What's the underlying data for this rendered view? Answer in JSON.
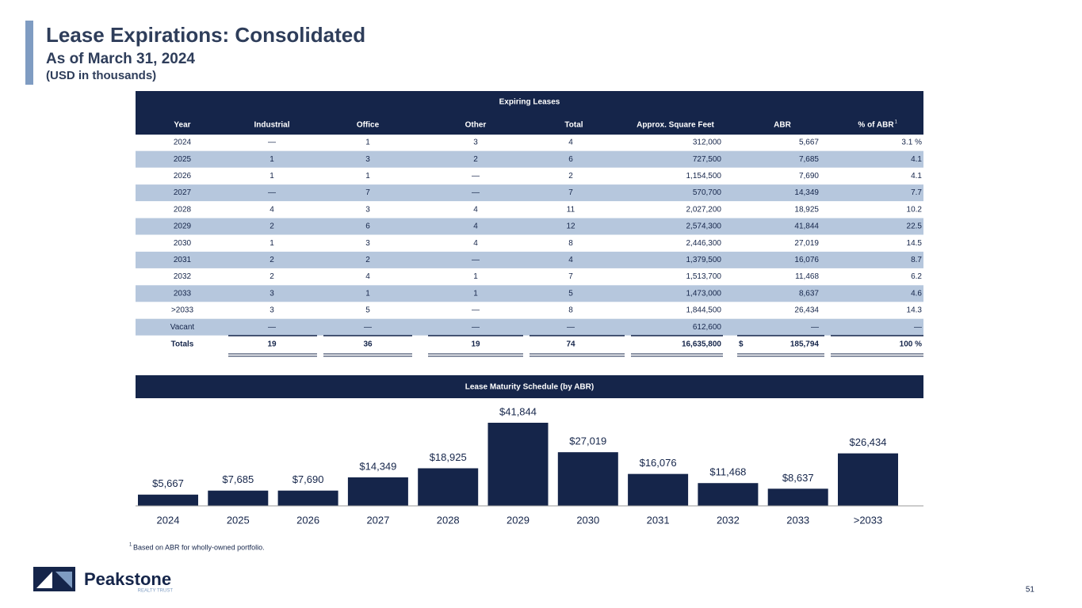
{
  "header": {
    "title": "Lease Expirations: Consolidated",
    "subtitle": "As of March 31, 2024",
    "units": "(USD in thousands)"
  },
  "table": {
    "group_header": "Expiring Leases",
    "columns": [
      "Year",
      "Industrial",
      "Office",
      "Other",
      "Total",
      "Approx. Square Feet",
      "ABR",
      "% of ABR"
    ],
    "column_note": "1",
    "rows": [
      [
        "2024",
        "—",
        "1",
        "3",
        "4",
        "312,000",
        "5,667",
        "3.1 %"
      ],
      [
        "2025",
        "1",
        "3",
        "2",
        "6",
        "727,500",
        "7,685",
        "4.1"
      ],
      [
        "2026",
        "1",
        "1",
        "—",
        "2",
        "1,154,500",
        "7,690",
        "4.1"
      ],
      [
        "2027",
        "—",
        "7",
        "—",
        "7",
        "570,700",
        "14,349",
        "7.7"
      ],
      [
        "2028",
        "4",
        "3",
        "4",
        "11",
        "2,027,200",
        "18,925",
        "10.2"
      ],
      [
        "2029",
        "2",
        "6",
        "4",
        "12",
        "2,574,300",
        "41,844",
        "22.5"
      ],
      [
        "2030",
        "1",
        "3",
        "4",
        "8",
        "2,446,300",
        "27,019",
        "14.5"
      ],
      [
        "2031",
        "2",
        "2",
        "—",
        "4",
        "1,379,500",
        "16,076",
        "8.7"
      ],
      [
        "2032",
        "2",
        "4",
        "1",
        "7",
        "1,513,700",
        "11,468",
        "6.2"
      ],
      [
        "2033",
        "3",
        "1",
        "1",
        "5",
        "1,473,000",
        "8,637",
        "4.6"
      ],
      [
        ">2033",
        "3",
        "5",
        "—",
        "8",
        "1,844,500",
        "26,434",
        "14.3"
      ],
      [
        "Vacant",
        "—",
        "—",
        "—",
        "—",
        "612,600",
        "—",
        "—"
      ]
    ],
    "totals": [
      "Totals",
      "19",
      "36",
      "19",
      "74",
      "16,635,800",
      "$",
      "185,794",
      "100 %"
    ]
  },
  "chart_data": {
    "type": "bar",
    "title": "Lease Maturity Schedule (by ABR)",
    "categories": [
      "2024",
      "2025",
      "2026",
      "2027",
      "2028",
      "2029",
      "2030",
      "2031",
      "2032",
      "2033",
      ">2033"
    ],
    "values": [
      5667,
      7685,
      7690,
      14349,
      18925,
      41844,
      27019,
      16076,
      11468,
      8637,
      26434
    ],
    "value_labels": [
      "$5,667",
      "$7,685",
      "$7,690",
      "$14,349",
      "$18,925",
      "$41,844",
      "$27,019",
      "$16,076",
      "$11,468",
      "$8,637",
      "$26,434"
    ],
    "color": "#15254a"
  },
  "footnote": {
    "marker": "1",
    "text": "Based on ABR for wholly-owned portfolio."
  },
  "logo": {
    "name": "Peakstone",
    "tagline": "REALTY TRUST"
  },
  "page_number": "51"
}
